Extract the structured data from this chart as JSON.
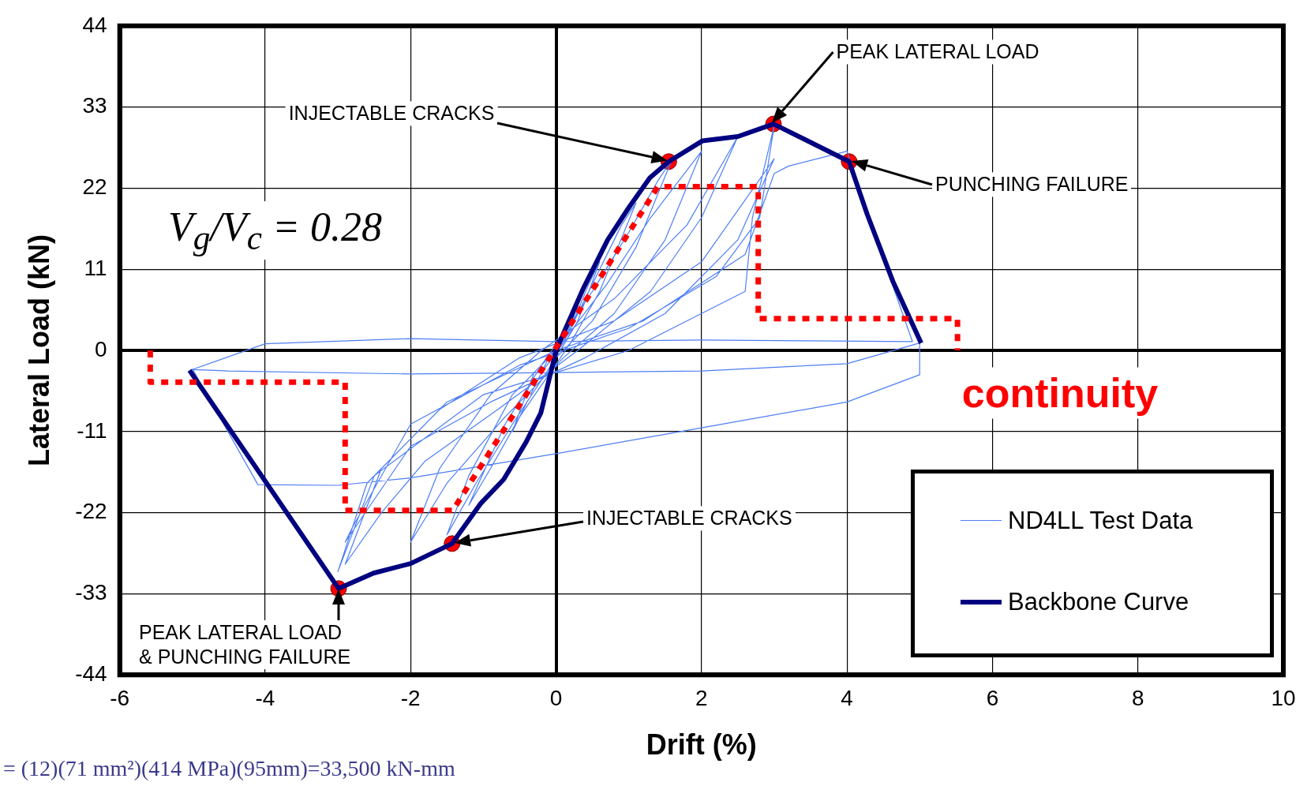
{
  "chart_data": {
    "type": "line",
    "xlabel": "Drift (%)",
    "ylabel": "Lateral Load (kN)",
    "xlim": [
      -6,
      10
    ],
    "xticks": [
      -6,
      -4,
      -2,
      0,
      2,
      4,
      6,
      8,
      10
    ],
    "ylim": [
      -44,
      44
    ],
    "yticks": [
      -44,
      -33,
      -22,
      -11,
      0,
      11,
      22,
      33,
      44
    ],
    "grid": true,
    "legend": "bottom right",
    "annotations": [
      "INJECTABLE CRACKS",
      "PEAK LATERAL LOAD",
      "PUNCHING FAILURE",
      "INJECTABLE CRACKS",
      {
        "text": "PEAK LATERAL LOAD\n& PUNCHING FAILURE",
        "x": -2.99,
        "y": -32.3
      },
      "V$_{g}$/V$_{c}$ = 0.28",
      "continuity",
      "= (12)(71 mm²)(414 MPa)(95mm)=33,500 kN-mm"
    ],
    "series": [
      {
        "name": "ND4LL Test Data",
        "type": "line",
        "color": "#4d7ef5",
        "marker": "none",
        "x": [
          0,
          0.15,
          0.3,
          0.1,
          -0.2,
          -0.35,
          -0.1,
          0.2,
          0.45,
          0.6,
          0.3,
          0,
          -0.4,
          -0.6,
          -0.3,
          0.1,
          0.6,
          0.9,
          1.1,
          0.6,
          0.2,
          -0.5,
          -0.9,
          -1.2,
          -0.7,
          -0.2,
          0.5,
          1.0,
          1.4,
          1.6,
          1.1,
          0.5,
          0,
          -0.6,
          -1.1,
          -1.5,
          -1.2,
          -0.6,
          0,
          0.7,
          1.3,
          2.0,
          1.5,
          0.8,
          0.1,
          -0.7,
          -1.5,
          -2.0,
          -1.6,
          -0.9,
          -0.2,
          0.8,
          1.8,
          2.5,
          2.0,
          1.3,
          0.3,
          -0.8,
          -1.8,
          -2.4,
          -2.9,
          -2.4,
          -1.6,
          -0.5,
          0.8,
          2.0,
          3.0,
          2.5,
          1.5,
          0.4,
          -0.9,
          -2.0,
          -2.9,
          -2.8,
          -2.0,
          -0.5,
          1.0,
          2.2,
          2.8,
          3.0,
          2.7,
          2.6,
          1.0,
          -1.0,
          -2.5,
          -3.0,
          -2.6,
          -1.5,
          0,
          1.2,
          2.6,
          3.0,
          3.2,
          4.0,
          4.3,
          4.9,
          3.5,
          2.0,
          0,
          -2.0,
          -4.0,
          -5.0,
          -4.5,
          -2.0,
          0,
          2.0,
          4.0,
          5.0,
          5.0,
          4.0,
          2.0,
          0,
          -2.0,
          -3.0,
          -4.1,
          -5.0
        ],
        "values": [
          0,
          3,
          6,
          1,
          -3,
          -6,
          -1,
          3,
          9,
          12,
          4,
          -1,
          -7,
          -11,
          -3,
          1,
          11,
          17,
          20,
          8,
          1,
          -9,
          -16,
          -21,
          -10,
          -2,
          8,
          16,
          23,
          26,
          14,
          4,
          -1,
          -10,
          -18,
          -25,
          -17,
          -6,
          0,
          9,
          18,
          27,
          15,
          5,
          -1,
          -9,
          -18,
          -26,
          -16,
          -6,
          0,
          7,
          17,
          29,
          18,
          8,
          0,
          -8,
          -15,
          -22,
          -29,
          -16,
          -8,
          -1,
          4,
          12,
          26,
          15,
          5,
          -1,
          -7,
          -13,
          -26,
          -24,
          -10,
          -2,
          3,
          10,
          18,
          30.5,
          18,
          8,
          0,
          -6,
          -17,
          -30,
          -18,
          -7,
          0,
          4,
          13,
          24,
          25,
          27,
          18,
          1.2,
          1.3,
          1.4,
          1.2,
          1.6,
          0.9,
          -2.6,
          -2.8,
          -3.2,
          -3.0,
          -2.8,
          -1.8,
          1.0,
          -3.3,
          -7,
          -10.5,
          -14,
          -17.3,
          -18.3,
          -18.2,
          -2.5
        ]
      },
      {
        "name": "Backbone Curve",
        "type": "line",
        "color": "#000080",
        "marker": "none",
        "x": [
          -5.04,
          -2.99,
          -2.51,
          -2.0,
          -1.43,
          -1.04,
          -0.72,
          -0.41,
          -0.21,
          -0.07,
          0,
          0.12,
          0.37,
          0.71,
          1.01,
          1.29,
          1.55,
          2.01,
          2.5,
          2.99,
          4.03,
          4.28,
          4.63,
          5.02
        ],
        "values": [
          -2.7,
          -32.3,
          -30.2,
          -28.9,
          -26.2,
          -20.8,
          -17.5,
          -12.4,
          -8.5,
          -2.9,
          0,
          2.7,
          8.3,
          15,
          19.5,
          23.4,
          25.6,
          28.4,
          29,
          30.7,
          25.6,
          18.4,
          9.4,
          1.0
        ]
      },
      {
        "type": "line",
        "color": "#ff0000",
        "marker": "none",
        "line_style": "dotted",
        "x": [
          -5.58,
          -5.58,
          -2.9,
          -2.9,
          -1.42,
          1.4,
          2.78,
          2.78,
          5.52,
          5.52
        ],
        "values": [
          0,
          -4.3,
          -4.3,
          -21.7,
          -21.7,
          22.2,
          22.2,
          4.3,
          4.3,
          0
        ]
      },
      {
        "type": "scatter",
        "color": "#ff0000",
        "marker": "circle",
        "x": [
          1.55,
          2.99,
          4.03,
          -1.43,
          -2.99
        ],
        "values": [
          25.6,
          30.7,
          25.6,
          -26.2,
          -32.3
        ]
      }
    ]
  }
}
